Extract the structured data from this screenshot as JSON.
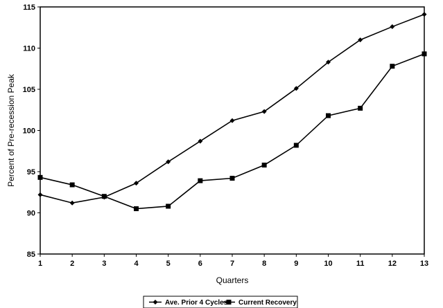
{
  "chart_data": {
    "type": "line",
    "title": "",
    "xlabel": "Quarters",
    "ylabel": "Percent of Pre-recession Peak",
    "x": [
      1,
      2,
      3,
      4,
      5,
      6,
      7,
      8,
      9,
      10,
      11,
      12,
      13
    ],
    "ylim": [
      85,
      115
    ],
    "yticks": [
      85,
      90,
      95,
      100,
      105,
      110,
      115
    ],
    "grid": false,
    "legend_position": "bottom-center",
    "series": [
      {
        "name": "Ave. Prior 4 Cycles",
        "marker": "diamond",
        "color": "#000000",
        "values": [
          92.2,
          91.2,
          91.9,
          93.6,
          96.2,
          98.7,
          101.2,
          102.3,
          105.1,
          108.3,
          111.0,
          112.6,
          114.1
        ]
      },
      {
        "name": "Current Recovery",
        "marker": "square",
        "color": "#000000",
        "values": [
          94.3,
          93.4,
          92.0,
          90.5,
          90.8,
          93.9,
          94.2,
          95.8,
          98.2,
          101.8,
          102.7,
          107.8,
          109.3
        ]
      }
    ]
  }
}
